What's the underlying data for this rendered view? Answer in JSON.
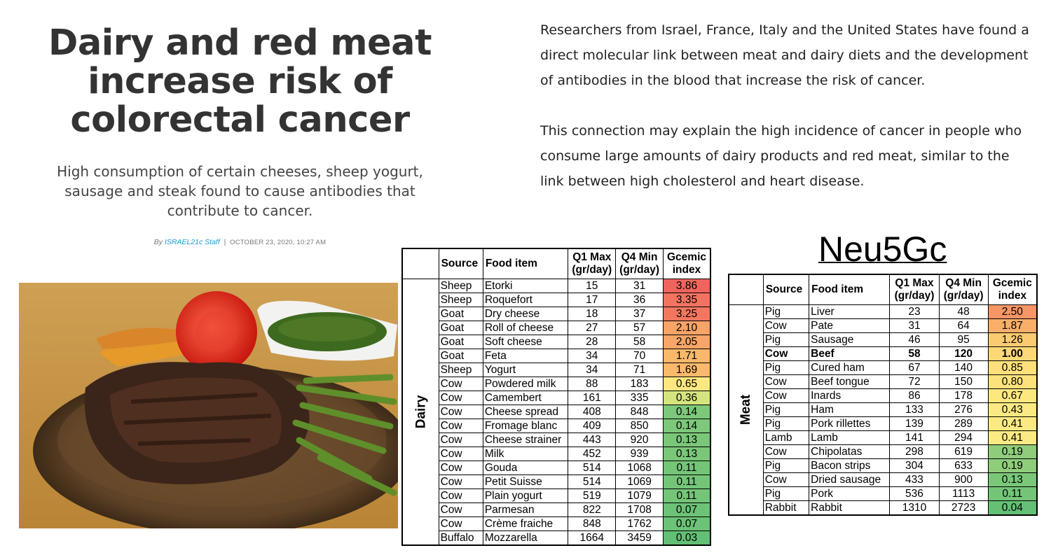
{
  "article": {
    "title": "Dairy and red meat increase risk of colorectal cancer",
    "subtitle": "High consumption of certain cheeses, sheep yogurt, sausage and steak found to cause antibodies that contribute to cancer.",
    "byline_prefix": "By",
    "author": "ISRAEL21c Staff",
    "separator": "|",
    "date": "OCTOBER 23, 2020, 10:27 AM",
    "paragraphs": [
      "Researchers from Israel, France, Italy and the United States have found a direct molecular link between meat and dairy diets and the development of antibodies in the blood that increase the risk of cancer.",
      "This connection may explain the high incidence of cancer in people who consume large amounts of dairy products and red meat, similar to the link between high cholesterol and heart disease."
    ]
  },
  "photo": {
    "description": "grilled-steak-plate"
  },
  "neu5gc_title": "Neu5Gc",
  "table_headers": {
    "source": "Source",
    "food": "Food item",
    "q1": [
      "Q1 Max",
      "(gr/day)"
    ],
    "q4": [
      "Q4 Min",
      "(gr/day)"
    ],
    "gi": [
      "Gcemic",
      "index"
    ]
  },
  "dairy": {
    "group": "Dairy",
    "rows": [
      {
        "source": "Sheep",
        "food": "Etorki",
        "q1": "15",
        "q4": "31",
        "gi": "3.86",
        "color": "#f0645e"
      },
      {
        "source": "Sheep",
        "food": "Roquefort",
        "q1": "17",
        "q4": "36",
        "gi": "3.35",
        "color": "#f27360"
      },
      {
        "source": "Goat",
        "food": "Dry cheese",
        "q1": "18",
        "q4": "37",
        "gi": "3.25",
        "color": "#f27760"
      },
      {
        "source": "Goat",
        "food": "Roll of cheese",
        "q1": "27",
        "q4": "57",
        "gi": "2.10",
        "color": "#f8a367"
      },
      {
        "source": "Goat",
        "food": "Soft cheese",
        "q1": "28",
        "q4": "58",
        "gi": "2.05",
        "color": "#f8a567"
      },
      {
        "source": "Goat",
        "food": "Feta",
        "q1": "34",
        "q4": "70",
        "gi": "1.71",
        "color": "#fab86b"
      },
      {
        "source": "Sheep",
        "food": "Yogurt",
        "q1": "34",
        "q4": "71",
        "gi": "1.69",
        "color": "#fab96b"
      },
      {
        "source": "Cow",
        "food": "Powdered milk",
        "q1": "88",
        "q4": "183",
        "gi": "0.65",
        "color": "#fde880"
      },
      {
        "source": "Cow",
        "food": "Camembert",
        "q1": "161",
        "q4": "335",
        "gi": "0.36",
        "color": "#d6e47e"
      },
      {
        "source": "Cow",
        "food": "Cheese spread",
        "q1": "408",
        "q4": "848",
        "gi": "0.14",
        "color": "#7dc87a"
      },
      {
        "source": "Cow",
        "food": "Fromage blanc",
        "q1": "409",
        "q4": "850",
        "gi": "0.14",
        "color": "#7dc87a"
      },
      {
        "source": "Cow",
        "food": "Cheese strainer",
        "q1": "443",
        "q4": "920",
        "gi": "0.13",
        "color": "#7ac779"
      },
      {
        "source": "Cow",
        "food": "Milk",
        "q1": "452",
        "q4": "939",
        "gi": "0.13",
        "color": "#7ac779"
      },
      {
        "source": "Cow",
        "food": "Gouda",
        "q1": "514",
        "q4": "1068",
        "gi": "0.11",
        "color": "#74c578"
      },
      {
        "source": "Cow",
        "food": "Petit Suisse",
        "q1": "514",
        "q4": "1069",
        "gi": "0.11",
        "color": "#74c578"
      },
      {
        "source": "Cow",
        "food": "Plain yogurt",
        "q1": "519",
        "q4": "1079",
        "gi": "0.11",
        "color": "#74c578"
      },
      {
        "source": "Cow",
        "food": "Parmesan",
        "q1": "822",
        "q4": "1708",
        "gi": "0.07",
        "color": "#6cc276"
      },
      {
        "source": "Cow",
        "food": "Crème fraiche",
        "q1": "848",
        "q4": "1762",
        "gi": "0.07",
        "color": "#6cc276"
      },
      {
        "source": "Buffalo",
        "food": "Mozzarella",
        "q1": "1664",
        "q4": "3459",
        "gi": "0.03",
        "color": "#63bf75"
      }
    ]
  },
  "meat": {
    "group": "Meat",
    "rows": [
      {
        "source": "Pig",
        "food": "Liver",
        "q1": "23",
        "q4": "48",
        "gi": "2.50",
        "color": "#f69565"
      },
      {
        "source": "Cow",
        "food": "Pate",
        "q1": "31",
        "q4": "64",
        "gi": "1.87",
        "color": "#f9ae69"
      },
      {
        "source": "Pig",
        "food": "Sausage",
        "q1": "46",
        "q4": "95",
        "gi": "1.26",
        "color": "#fbcb72"
      },
      {
        "source": "Cow",
        "food": "Beef",
        "q1": "58",
        "q4": "120",
        "gi": "1.00",
        "color": "#fcd877",
        "bold": true
      },
      {
        "source": "Pig",
        "food": "Cured ham",
        "q1": "67",
        "q4": "140",
        "gi": "0.85",
        "color": "#fde07b"
      },
      {
        "source": "Cow",
        "food": "Beef tongue",
        "q1": "72",
        "q4": "150",
        "gi": "0.80",
        "color": "#fde27c"
      },
      {
        "source": "Cow",
        "food": "Inards",
        "q1": "86",
        "q4": "178",
        "gi": "0.67",
        "color": "#fde880"
      },
      {
        "source": "Pig",
        "food": "Ham",
        "q1": "133",
        "q4": "276",
        "gi": "0.43",
        "color": "#fbea83"
      },
      {
        "source": "Pig",
        "food": "Pork rillettes",
        "q1": "139",
        "q4": "289",
        "gi": "0.41",
        "color": "#fbea83"
      },
      {
        "source": "Lamb",
        "food": "Lamb",
        "q1": "141",
        "q4": "294",
        "gi": "0.41",
        "color": "#fbea83"
      },
      {
        "source": "Cow",
        "food": "Chipolatas",
        "q1": "298",
        "q4": "619",
        "gi": "0.19",
        "color": "#8fcd7b"
      },
      {
        "source": "Pig",
        "food": "Bacon strips",
        "q1": "304",
        "q4": "633",
        "gi": "0.19",
        "color": "#8fcd7b"
      },
      {
        "source": "Cow",
        "food": "Dried sausage",
        "q1": "433",
        "q4": "900",
        "gi": "0.13",
        "color": "#7ac779"
      },
      {
        "source": "Pig",
        "food": "Pork",
        "q1": "536",
        "q4": "1113",
        "gi": "0.11",
        "color": "#74c578"
      },
      {
        "source": "Rabbit",
        "food": "Rabbit",
        "q1": "1310",
        "q4": "2723",
        "gi": "0.04",
        "color": "#64c075"
      }
    ]
  }
}
